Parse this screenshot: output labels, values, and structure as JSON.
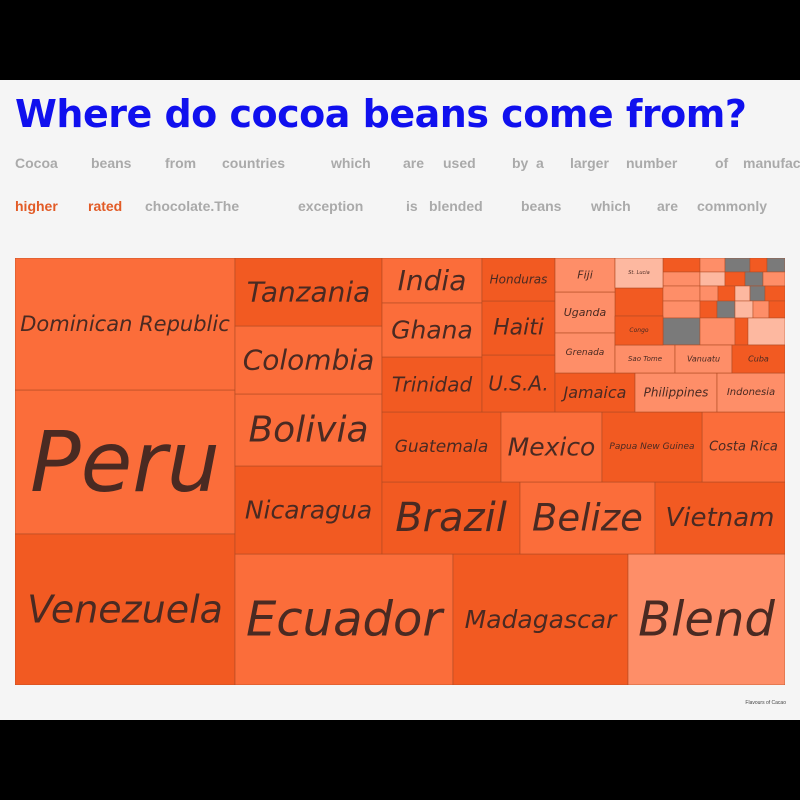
{
  "title": "Where do cocoa beans come from?",
  "subtitle_line1": [
    "Cocoa",
    "beans",
    "from",
    "countries",
    "which",
    "are",
    "used",
    "by",
    "a",
    "larger",
    "number",
    "of",
    "manufac"
  ],
  "subtitle_line2": [
    "higher",
    "rated",
    "chocolate.The",
    "exception",
    "is",
    "blended",
    "beans",
    "which",
    "are",
    "commonly"
  ],
  "subtitle_highlight_words": [
    "higher",
    "rated"
  ],
  "source": "Flavours of Cacao",
  "colors": {
    "title": "#1010ee",
    "subtitle": "#aaaaaa",
    "highlight": "#e25b26",
    "cell_dark": "#f25a22",
    "cell_mid": "#fb6d3a",
    "cell_light": "#fe8e68",
    "cell_pale": "#fdb8a0",
    "cell_gray": "#7a7a7a",
    "label": "#4a2a22"
  },
  "chart_data": {
    "type": "treemap",
    "title": "Where do cocoa beans come from?",
    "value_meaning": "relative number of manufacturers using beans from each origin (estimated from tile area)",
    "items": [
      {
        "name": "Peru",
        "value": 160
      },
      {
        "name": "Venezuela",
        "value": 145
      },
      {
        "name": "Ecuador",
        "value": 140
      },
      {
        "name": "Dominican Republic",
        "value": 135
      },
      {
        "name": "Madagascar",
        "value": 115
      },
      {
        "name": "Blend",
        "value": 100
      },
      {
        "name": "Nicaragua",
        "value": 56
      },
      {
        "name": "Brazil",
        "value": 55
      },
      {
        "name": "Bolivia",
        "value": 54
      },
      {
        "name": "Belize",
        "value": 51
      },
      {
        "name": "Colombia",
        "value": 50
      },
      {
        "name": "Tanzania",
        "value": 49
      },
      {
        "name": "Vietnam",
        "value": 48
      },
      {
        "name": "Guatemala",
        "value": 38
      },
      {
        "name": "Mexico",
        "value": 36
      },
      {
        "name": "Costa Rica",
        "value": 30
      },
      {
        "name": "Trinidad",
        "value": 29
      },
      {
        "name": "India",
        "value": 24
      },
      {
        "name": "Ghana",
        "value": 24
      },
      {
        "name": "Papua New Guinea",
        "value": 22
      },
      {
        "name": "U.S.A.",
        "value": 22
      },
      {
        "name": "Haiti",
        "value": 19
      },
      {
        "name": "Honduras",
        "value": 17
      },
      {
        "name": "Jamaica",
        "value": 17
      },
      {
        "name": "Philippines",
        "value": 15
      },
      {
        "name": "Indonesia",
        "value": 14
      },
      {
        "name": "Uganda",
        "value": 14
      },
      {
        "name": "Grenada",
        "value": 14
      },
      {
        "name": "Fiji",
        "value": 10
      },
      {
        "name": "Sao Tome",
        "value": 10
      },
      {
        "name": "Vanuatu",
        "value": 9
      },
      {
        "name": "Cuba",
        "value": 8
      },
      {
        "name": "St. Lucia",
        "value": 6
      },
      {
        "name": "Congo",
        "value": 6
      }
    ]
  }
}
